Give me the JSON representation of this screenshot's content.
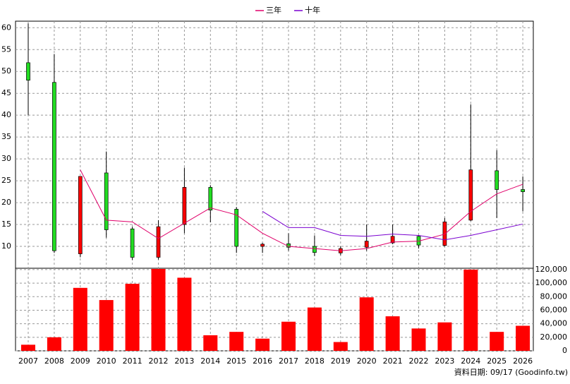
{
  "chart_data": [
    {
      "type": "candlestick",
      "open": [
        52,
        47.5,
        8.3,
        26.8,
        14,
        7.5,
        15,
        23.5,
        18.5,
        10,
        10.6,
        10,
        8.5,
        9.8,
        10.8,
        12.3,
        10.2,
        16,
        27.3,
        23
      ],
      "high": [
        61,
        54,
        26,
        31.7,
        14.5,
        16,
        28,
        24,
        19,
        10.8,
        13,
        12.5,
        10,
        15,
        15,
        12.5,
        16.5,
        42.5,
        32,
        26
      ],
      "low": [
        40,
        8.5,
        7.5,
        12,
        6.9,
        7,
        13,
        15.5,
        8.5,
        8.5,
        9,
        7.8,
        8,
        9,
        10.5,
        9.5,
        10,
        15.8,
        16.5,
        18
      ],
      "close": [
        48,
        9,
        26,
        13.8,
        7.5,
        14.5,
        23.5,
        18.3,
        10,
        10.5,
        9.8,
        8.6,
        9.5,
        11.2,
        12.3,
        10.3,
        15.6,
        27.5,
        23,
        22.5
      ],
      "up_color": "#ff0000",
      "down_color": "#22dd22",
      "series": [
        {
          "name": "三年",
          "color": "#e0006a",
          "values": [
            null,
            null,
            27.5,
            16,
            15.6,
            11.8,
            15.3,
            18.8,
            17.2,
            13,
            10,
            9.5,
            9,
            9.5,
            11,
            11.2,
            12.8,
            18,
            22,
            24.2
          ]
        },
        {
          "name": "十年",
          "color": "#7a00d0",
          "values": [
            null,
            null,
            null,
            null,
            null,
            null,
            null,
            null,
            null,
            18,
            14.3,
            14.3,
            12.5,
            12.3,
            12.8,
            12.5,
            11.5,
            12.5,
            13.8,
            15.1
          ]
        }
      ],
      "ylim": [
        5,
        61.5
      ],
      "yticks": [
        10,
        15,
        20,
        25,
        30,
        35,
        40,
        45,
        50,
        55,
        60
      ],
      "grid": true
    },
    {
      "type": "bar",
      "categories": [
        "2007",
        "2008",
        "2009",
        "2010",
        "2011",
        "2012",
        "2013",
        "2014",
        "2015",
        "2016",
        "2017",
        "2018",
        "2019",
        "2020",
        "2021",
        "2022",
        "2023",
        "2024",
        "2025",
        "2026"
      ],
      "values": [
        9000,
        20000,
        93000,
        75000,
        99000,
        121000,
        108000,
        23000,
        28000,
        18000,
        43000,
        64000,
        13000,
        79000,
        51000,
        33000,
        42000,
        120000,
        28000,
        37000
      ],
      "color": "#ff0000",
      "ylim": [
        0,
        122000
      ],
      "yticks": [
        0,
        {
          "value": 20000,
          "label": "20,000"
        },
        {
          "value": 40000,
          "label": "40,000"
        },
        {
          "value": 60000,
          "label": "60,000"
        },
        {
          "value": 80000,
          "label": "80,000"
        },
        {
          "value": 100000,
          "label": "100,000"
        },
        {
          "value": 120000,
          "label": "120,000"
        }
      ],
      "grid": true,
      "source": "資料日期: 09/17 (Goodinfo.tw)"
    }
  ]
}
